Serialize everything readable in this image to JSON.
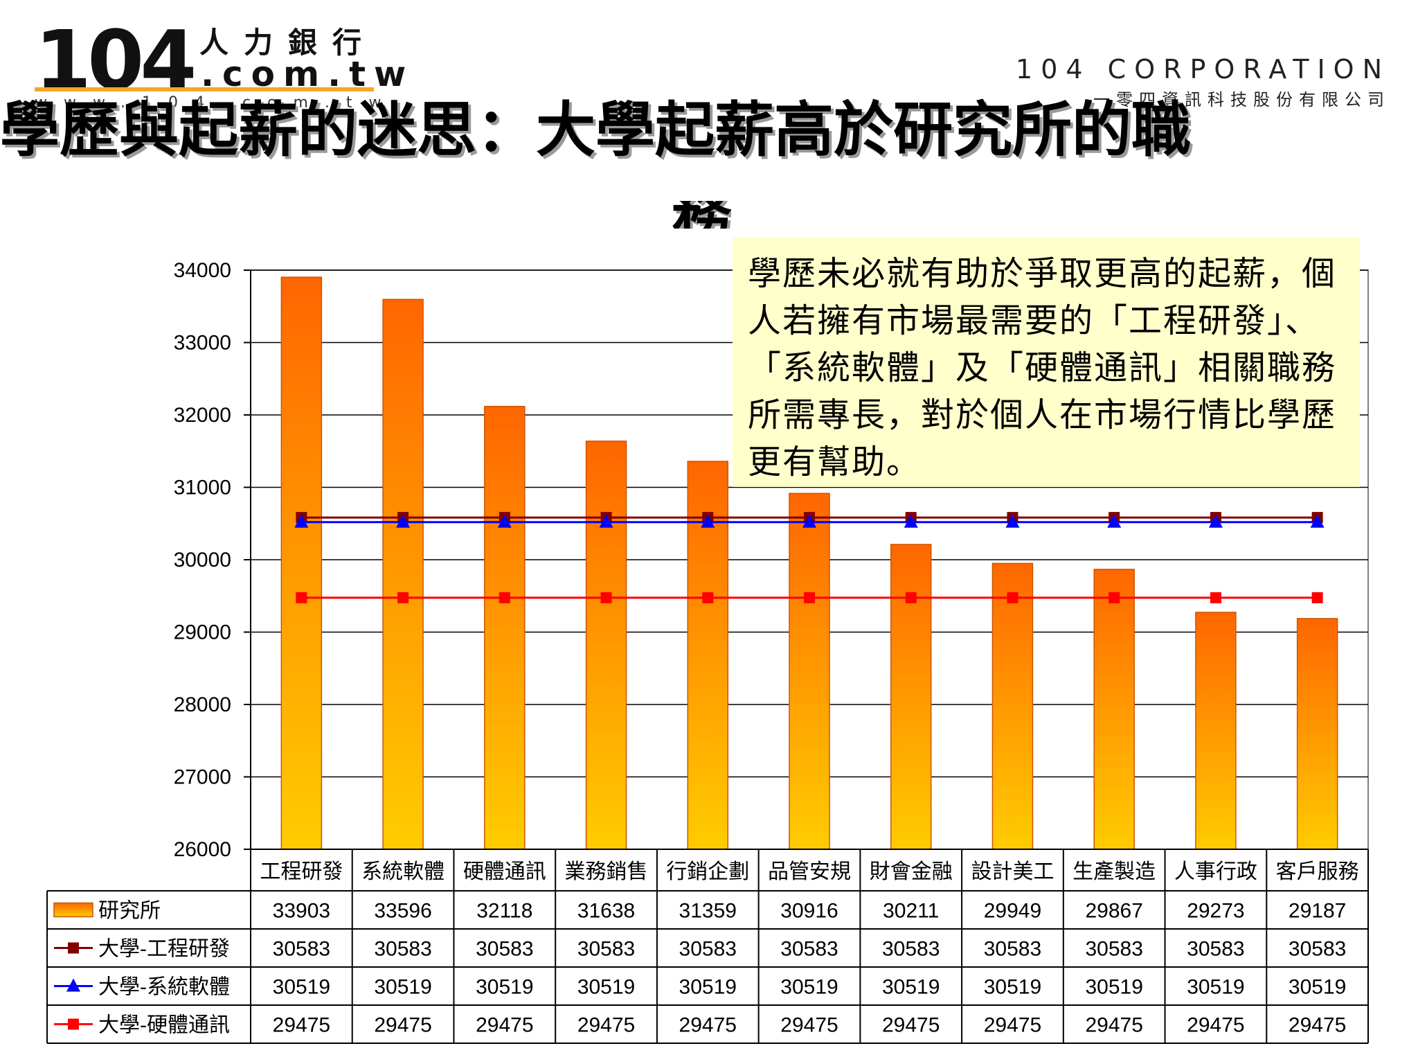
{
  "header": {
    "logo_number": "104",
    "logo_chinese": "人力銀行",
    "logo_domain": ".com.tw",
    "logo_url": "www.104.com.tw",
    "corp_en": "104 CORPORATION",
    "corp_cn": "一零四資訊科技股份有限公司"
  },
  "title": {
    "line1": "學歷與起薪的迷思：大學起薪高於研究所的職",
    "line2": "務"
  },
  "callout": {
    "text": "學歷未必就有助於爭取更高的起薪，個人若擁有市場最需要的「工程研發」、「系統軟體」及「硬體通訊」相關職務所需專長，對於個人在市場行情比學歷更有幫助。"
  },
  "colors": {
    "bar_top": "#ff6600",
    "bar_bottom": "#ffcc00",
    "line_engineering": "#800000",
    "line_software": "#0000ff",
    "line_hardware": "#ff0000",
    "grid": "#000000"
  },
  "chart_data": {
    "type": "bar",
    "categories": [
      "工程研發",
      "系統軟體",
      "硬體通訊",
      "業務銷售",
      "行銷企劃",
      "品管安規",
      "財會金融",
      "設計美工",
      "生產製造",
      "人事行政",
      "客戶服務"
    ],
    "series": [
      {
        "name": "研究所",
        "type": "bar",
        "values": [
          33903,
          33596,
          32118,
          31638,
          31359,
          30916,
          30211,
          29949,
          29867,
          29273,
          29187
        ]
      },
      {
        "name": "大學-工程研發",
        "type": "line",
        "marker": "square",
        "values": [
          30583,
          30583,
          30583,
          30583,
          30583,
          30583,
          30583,
          30583,
          30583,
          30583,
          30583
        ]
      },
      {
        "name": "大學-系統軟體",
        "type": "line",
        "marker": "triangle",
        "values": [
          30519,
          30519,
          30519,
          30519,
          30519,
          30519,
          30519,
          30519,
          30519,
          30519,
          30519
        ]
      },
      {
        "name": "大學-硬體通訊",
        "type": "line",
        "marker": "square",
        "values": [
          29475,
          29475,
          29475,
          29475,
          29475,
          29475,
          29475,
          29475,
          29475,
          29475,
          29475
        ]
      }
    ],
    "yticks": [
      26000,
      27000,
      28000,
      29000,
      30000,
      31000,
      32000,
      33000,
      34000
    ],
    "ylim": [
      26000,
      34000
    ],
    "grid": true,
    "legend": "data-table"
  }
}
